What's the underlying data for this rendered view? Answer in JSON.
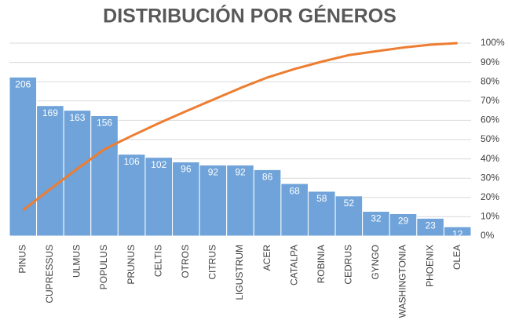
{
  "chart_data": {
    "type": "pareto",
    "title": "DISTRIBUCIÓN POR GÉNEROS",
    "categories": [
      "PINUS",
      "CUPRESSUS",
      "ULMUS",
      "POPULUS",
      "PRUNUS",
      "CELTIS",
      "OTROS",
      "CITRUS",
      "LIGUSTRUM",
      "ACER",
      "CATALPA",
      "ROBINIA",
      "CEDRUS",
      "GYNGO",
      "WASHINGTONIA",
      "PHOENIX",
      "OLEA"
    ],
    "values": [
      206,
      169,
      163,
      156,
      106,
      102,
      96,
      92,
      92,
      86,
      68,
      58,
      52,
      32,
      29,
      23,
      12
    ],
    "color": "#6fa3d9",
    "ylim": [
      0,
      250
    ],
    "cumulative_values": [
      13.4,
      24.3,
      34.9,
      45.0,
      51.9,
      58.5,
      64.7,
      70.7,
      76.7,
      82.2,
      86.6,
      90.4,
      93.8,
      95.8,
      97.7,
      99.2,
      100
    ],
    "line_color": "#ed7d31",
    "y2lim": [
      0,
      100
    ],
    "y2ticks": [
      {
        "value": 0,
        "label": "0%"
      },
      {
        "value": 10,
        "label": "10%"
      },
      {
        "value": 20,
        "label": "20%"
      },
      {
        "value": 30,
        "label": "30%"
      },
      {
        "value": 40,
        "label": "40%"
      },
      {
        "value": 50,
        "label": "50%"
      },
      {
        "value": 60,
        "label": "60%"
      },
      {
        "value": 70,
        "label": "70%"
      },
      {
        "value": 80,
        "label": "80%"
      },
      {
        "value": 90,
        "label": "90%"
      },
      {
        "value": 100,
        "label": "100%"
      }
    ],
    "grid": true
  }
}
